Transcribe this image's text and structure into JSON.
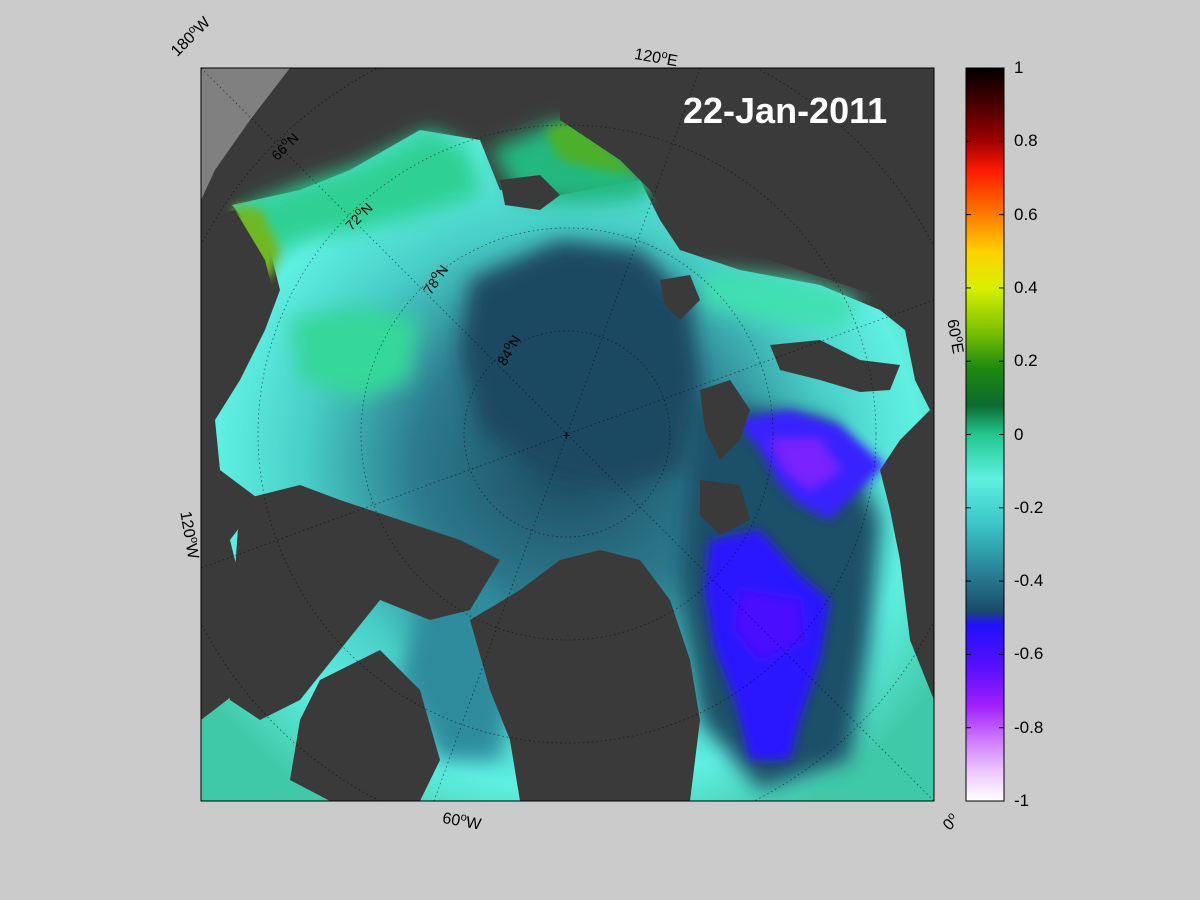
{
  "map": {
    "date": "22-Jan-2011",
    "longitude_labels": [
      {
        "deg": "180",
        "hemi": "W"
      },
      {
        "deg": "120",
        "hemi": "E"
      },
      {
        "deg": "60",
        "hemi": "E"
      },
      {
        "deg": "0",
        "hemi": ""
      },
      {
        "deg": "60",
        "hemi": "W"
      },
      {
        "deg": "120",
        "hemi": "W"
      }
    ],
    "latitude_labels": [
      {
        "deg": "66",
        "hemi": "N"
      },
      {
        "deg": "72",
        "hemi": "N"
      },
      {
        "deg": "78",
        "hemi": "N"
      },
      {
        "deg": "84",
        "hemi": "N"
      }
    ],
    "colorbar": {
      "min": -1,
      "max": 1,
      "ticks": [
        "1",
        "0.8",
        "0.6",
        "0.4",
        "0.2",
        "0",
        "-0.2",
        "-0.4",
        "-0.6",
        "-0.8",
        "-1"
      ],
      "colors": [
        "#000000",
        "#4a0000",
        "#a00000",
        "#ff1a00",
        "#ff7a00",
        "#ffd000",
        "#d8f000",
        "#7ac000",
        "#1e8a10",
        "#0d6a30",
        "#20c890",
        "#5ef0e0",
        "#3cc8c8",
        "#2a8a9a",
        "#1a4c6a",
        "#2010ff",
        "#5a10ff",
        "#a020ff",
        "#d080ff",
        "#ecc8ff",
        "#ffffff"
      ]
    },
    "land_color": "#3a3a3a",
    "outside_color": "#808080"
  }
}
